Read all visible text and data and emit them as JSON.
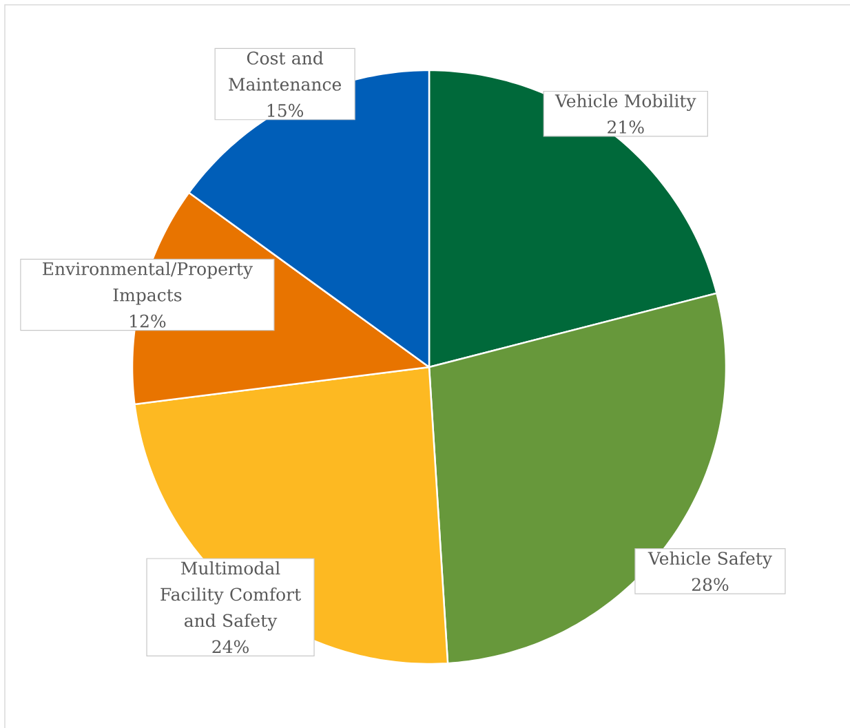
{
  "chart_data": {
    "type": "pie",
    "categories": [
      "Vehicle Mobility",
      "Vehicle Safety",
      "Multimodal Facility Comfort and Safety",
      "Environmental/Property Impacts",
      "Cost and Maintenance"
    ],
    "values": [
      21,
      28,
      24,
      12,
      15
    ],
    "value_labels": [
      "21%",
      "28%",
      "24%",
      "12%",
      "15%"
    ],
    "colors": [
      "#00693a",
      "#67983b",
      "#fdb922",
      "#e87400",
      "#005eb8"
    ]
  }
}
